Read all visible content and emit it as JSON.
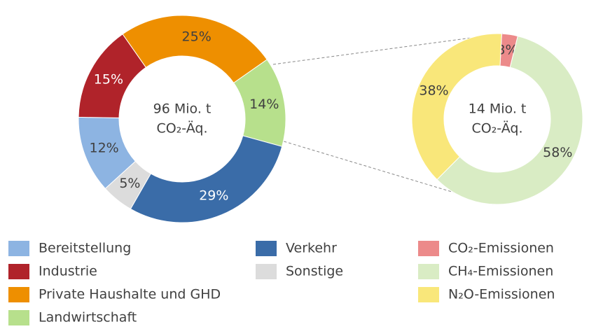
{
  "chart_data": [
    {
      "type": "pie",
      "categories": [
        "Bereitstellung",
        "Industrie",
        "Private Haushalte und GHD",
        "Landwirtschaft",
        "Verkehr",
        "Sonstige"
      ],
      "values": [
        12,
        15,
        25,
        14,
        29,
        5
      ],
      "value_labels": [
        "12%",
        "15%",
        "25%",
        "14%",
        "29%",
        "5%"
      ],
      "colors": [
        "#8db4e2",
        "#b0232a",
        "#ee8f00",
        "#b7e08c",
        "#3a6ca8",
        "#dcdcdc"
      ],
      "center_text": [
        "96 Mio. t",
        "CO₂-Äq."
      ]
    },
    {
      "type": "pie",
      "categories": [
        "CO₂-Emissionen",
        "CH₄-Emissionen",
        "N₂O-Emissionen"
      ],
      "values": [
        3,
        58,
        38
      ],
      "value_labels": [
        "3%",
        "58%",
        "38%"
      ],
      "colors": [
        "#ec8a8a",
        "#d9ecc4",
        "#f9e77a"
      ],
      "center_text": [
        "14 Mio. t",
        "CO₂-Äq."
      ]
    }
  ]
}
